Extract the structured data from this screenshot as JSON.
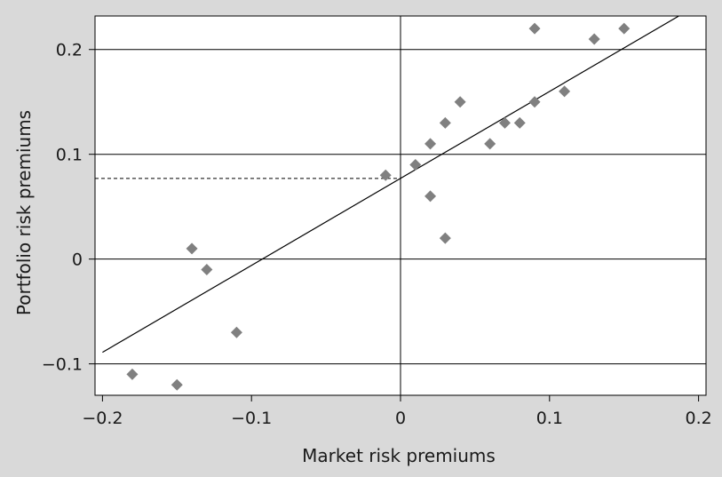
{
  "chart_data": {
    "type": "scatter",
    "title": "",
    "xlabel": "Market risk premiums",
    "ylabel": "Portfolio risk premiums",
    "xlim": [
      -0.205,
      0.205
    ],
    "ylim": [
      -0.13,
      0.232
    ],
    "x_ticks": [
      -0.2,
      -0.1,
      0,
      0.1,
      0.2
    ],
    "x_tick_labels": [
      "−0.2",
      "−0.1",
      "0",
      "0.1",
      "0.2"
    ],
    "y_ticks": [
      -0.1,
      0,
      0.1,
      0.2
    ],
    "y_tick_labels": [
      "−0.1",
      "0",
      "0.1",
      "0.2"
    ],
    "grid": "horizontal",
    "reference_lines": {
      "x": 0,
      "y": 0
    },
    "point_color": "#808080",
    "line_color": "#000000",
    "background_color": "#d9d9d9",
    "plot_background_color": "#ffffff",
    "fit_line": {
      "intercept": 0.077,
      "slope": 0.83
    },
    "intercept_marker": {
      "y": 0.077,
      "style": "dashed"
    },
    "points": [
      {
        "x": -0.18,
        "y": -0.11
      },
      {
        "x": -0.15,
        "y": -0.12
      },
      {
        "x": -0.14,
        "y": 0.01
      },
      {
        "x": -0.13,
        "y": -0.01
      },
      {
        "x": -0.11,
        "y": -0.07
      },
      {
        "x": -0.01,
        "y": 0.08
      },
      {
        "x": 0.01,
        "y": 0.09
      },
      {
        "x": 0.02,
        "y": 0.11
      },
      {
        "x": 0.02,
        "y": 0.06
      },
      {
        "x": 0.03,
        "y": 0.13
      },
      {
        "x": 0.03,
        "y": 0.02
      },
      {
        "x": 0.04,
        "y": 0.15
      },
      {
        "x": 0.06,
        "y": 0.11
      },
      {
        "x": 0.07,
        "y": 0.13
      },
      {
        "x": 0.08,
        "y": 0.13
      },
      {
        "x": 0.09,
        "y": 0.22
      },
      {
        "x": 0.09,
        "y": 0.15
      },
      {
        "x": 0.11,
        "y": 0.16
      },
      {
        "x": 0.13,
        "y": 0.21
      },
      {
        "x": 0.15,
        "y": 0.22
      }
    ]
  }
}
